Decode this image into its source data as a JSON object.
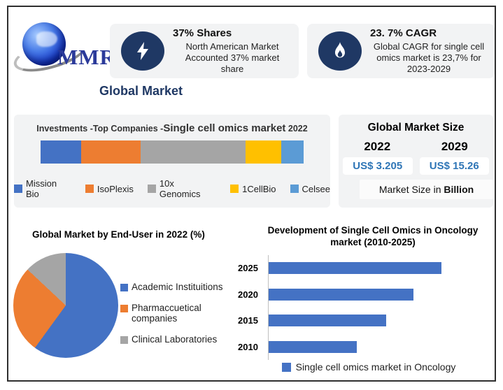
{
  "brand": {
    "logo_text": "MMR"
  },
  "header": {
    "card_shares": {
      "title": "37% Shares",
      "body": "North American Market Accounted 37% market share"
    },
    "card_cagr": {
      "title": "23. 7% CAGR",
      "body": "Global CAGR for single cell omics market is 23,7% for 2023-2029"
    },
    "heading": "Global Market"
  },
  "investments": {
    "title_prefix": "Investments -Top Companies -",
    "title_emphasis": "Single cell omics market",
    "title_year": " 2022"
  },
  "market_size": {
    "title": "Global Market Size",
    "year_left": "2022",
    "year_right": "2029",
    "value_left": "US$ 3.205",
    "value_right": "US$ 15.26",
    "footer_prefix": "Market Size in ",
    "footer_bold": "Billion"
  },
  "colors": {
    "navy": "#1f3864",
    "value_blue": "#2e75b6",
    "panel_gray": "#f2f3f4"
  },
  "chart_data": [
    {
      "type": "stacked-bar",
      "title": "Investments -Top Companies -Single cell omics market 2022",
      "series": [
        {
          "name": "Mission Bio",
          "value": 15.5,
          "color": "#4472c4"
        },
        {
          "name": "IsoPlexis",
          "value": 22.5,
          "color": "#ed7d31"
        },
        {
          "name": "10x Genomics",
          "value": 40.0,
          "color": "#a5a5a5"
        },
        {
          "name": "1CellBio",
          "value": 13.5,
          "color": "#ffc000"
        },
        {
          "name": "Celsee",
          "value": 8.5,
          "color": "#5b9bd5"
        }
      ]
    },
    {
      "type": "pie",
      "title": "Global Market by End-User in 2022 (%)",
      "slices": [
        {
          "name": "Academic Instituitions",
          "value": 60,
          "color": "#4472c4"
        },
        {
          "name": "Pharmaccuetical companies",
          "value": 27,
          "color": "#ed7d31"
        },
        {
          "name": "Clinical Laboratories",
          "value": 13,
          "color": "#a5a5a5"
        }
      ],
      "legend_position": "right"
    },
    {
      "type": "bar",
      "orientation": "horizontal",
      "title": "Development of Single Cell Omics in Oncology market (2010-2025)",
      "categories": [
        "2025",
        "2020",
        "2015",
        "2010"
      ],
      "values": [
        100,
        84,
        68,
        51
      ],
      "xmax": 100,
      "color": "#4472c4",
      "legend": "Single cell omics market in Oncology",
      "grid": false
    }
  ]
}
